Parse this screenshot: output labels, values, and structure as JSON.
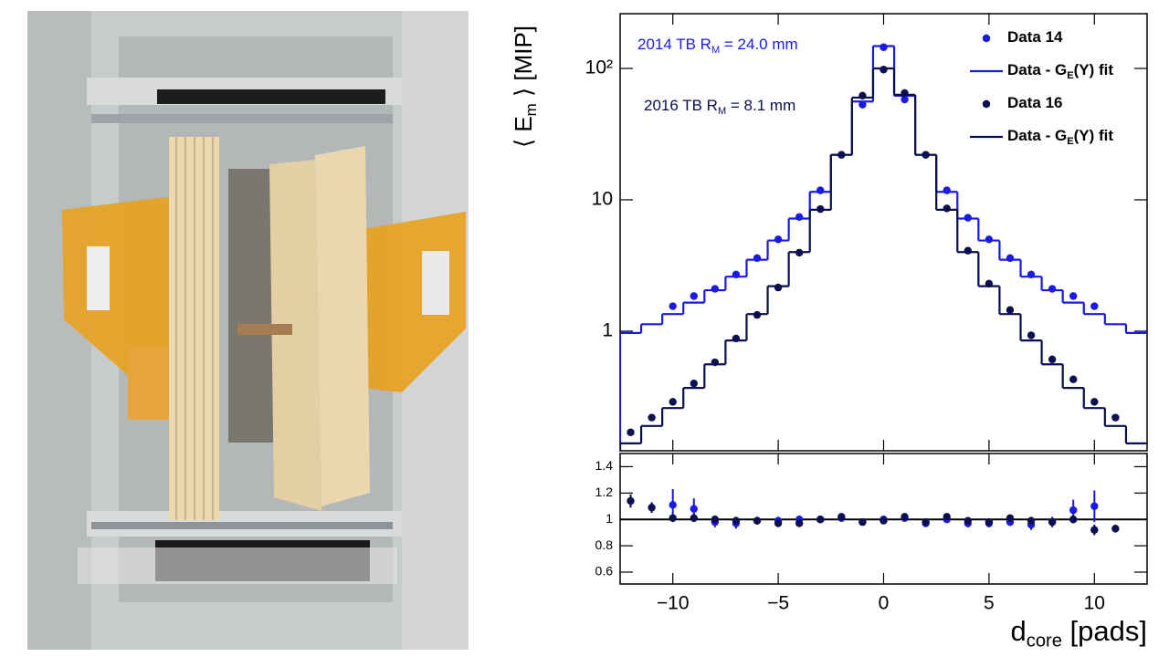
{
  "chart_data": [
    {
      "type": "scatter",
      "yscale": "log",
      "ylabel": [
        "⟨ E",
        "m",
        " ⟩ [MIP]"
      ],
      "annotations": [
        {
          "text": [
            "2014 TB R",
            "M",
            " = 24.0 mm"
          ],
          "color": "#1a1ae6"
        },
        {
          "text": [
            "2016 TB R",
            "M",
            " = 8.1 mm"
          ],
          "color": "#0b0f4f"
        }
      ],
      "legend": "upper right",
      "xlim": [
        -12.5,
        12.5
      ],
      "ylim": [
        0.123,
        261
      ],
      "yticks": [
        1,
        10,
        {
          "value": 100,
          "label": "10²"
        }
      ],
      "series": [
        {
          "name": [
            "Data 14"
          ],
          "color": "#1a1ae6",
          "style": "points",
          "x": [
            -10,
            -9,
            -8,
            -7,
            -6,
            -5,
            -4,
            -3,
            -2,
            -1,
            0,
            1,
            2,
            3,
            4,
            5,
            6,
            7,
            8,
            9,
            10
          ],
          "values": [
            1.55,
            1.85,
            2.1,
            2.7,
            3.6,
            5.0,
            7.4,
            11.8,
            22,
            53,
            145,
            58,
            22,
            11.8,
            7.3,
            5.0,
            3.6,
            2.7,
            2.1,
            1.85,
            1.55
          ]
        },
        {
          "name": [
            "Data - G",
            "E",
            "(Y) fit"
          ],
          "color": "#1a1ae6",
          "style": "steps",
          "x": [
            -12,
            -11,
            -10,
            -9,
            -8,
            -7,
            -6,
            -5,
            -4,
            -3,
            -2,
            -1,
            0,
            1,
            2,
            3,
            4,
            5,
            6,
            7,
            8,
            9,
            10,
            11,
            12
          ],
          "values": [
            0.97,
            1.13,
            1.35,
            1.65,
            2.05,
            2.6,
            3.5,
            4.9,
            7.2,
            11.5,
            22,
            56,
            148,
            62,
            22,
            11.5,
            7.2,
            4.9,
            3.5,
            2.6,
            2.05,
            1.65,
            1.35,
            1.13,
            0.97
          ]
        },
        {
          "name": [
            "Data 16"
          ],
          "color": "#0b0f4f",
          "style": "points",
          "x": [
            -12,
            -11,
            -10,
            -9,
            -8,
            -7,
            -6,
            -5,
            -4,
            -3,
            -2,
            -1,
            0,
            1,
            2,
            3,
            4,
            5,
            6,
            7,
            8,
            9,
            10,
            11
          ],
          "values": [
            0.17,
            0.22,
            0.29,
            0.4,
            0.58,
            0.88,
            1.33,
            2.15,
            3.96,
            8.5,
            22,
            62,
            98,
            65,
            22,
            8.6,
            4.1,
            2.3,
            1.45,
            0.93,
            0.61,
            0.43,
            0.29,
            0.22
          ]
        },
        {
          "name": [
            "Data - G",
            "E",
            "(Y) fit"
          ],
          "color": "#0b0f4f",
          "style": "steps",
          "x": [
            -12,
            -11,
            -10,
            -9,
            -8,
            -7,
            -6,
            -5,
            -4,
            -3,
            -2,
            -1,
            0,
            1,
            2,
            3,
            4,
            5,
            6,
            7,
            8,
            9,
            10,
            11,
            12
          ],
          "values": [
            0.14,
            0.19,
            0.26,
            0.37,
            0.56,
            0.85,
            1.35,
            2.2,
            4.0,
            8.4,
            22,
            60,
            100,
            63,
            22,
            8.4,
            4.0,
            2.2,
            1.35,
            0.85,
            0.56,
            0.37,
            0.26,
            0.19,
            0.14
          ]
        }
      ]
    },
    {
      "type": "scatter",
      "xlabel": [
        "d",
        "core",
        " [pads]"
      ],
      "xlim": [
        -12.5,
        12.5
      ],
      "ylim": [
        0.51,
        1.5
      ],
      "xticks": [
        {
          "value": -10,
          "label": "−10"
        },
        {
          "value": -5,
          "label": "−5"
        },
        0,
        5,
        10
      ],
      "yticks": [
        0.6,
        0.8,
        1,
        1.2,
        1.4
      ],
      "hline": 1,
      "series": [
        {
          "color": "#1a1ae6",
          "style": "points",
          "x": [
            -10,
            -9,
            -8,
            -7,
            -6,
            -5,
            -4,
            -3,
            -2,
            -1,
            0,
            1,
            2,
            3,
            4,
            5,
            6,
            7,
            8,
            9,
            10
          ],
          "values": [
            1.11,
            1.08,
            0.98,
            0.97,
            0.99,
            0.99,
            1.0,
            1.0,
            1.01,
            0.98,
            1.0,
            1.01,
            0.97,
            1.0,
            0.97,
            0.97,
            0.98,
            0.96,
            0.98,
            1.07,
            1.1
          ],
          "errors": [
            0.12,
            0.08,
            0.04,
            0.04,
            0.03,
            0.03,
            0.03,
            0.02,
            0.02,
            0.02,
            0.01,
            0.02,
            0.02,
            0.02,
            0.03,
            0.03,
            0.03,
            0.04,
            0.04,
            0.08,
            0.12
          ]
        },
        {
          "color": "#0b0f4f",
          "style": "points",
          "x": [
            -12,
            -11,
            -10,
            -9,
            -8,
            -7,
            -6,
            -5,
            -4,
            -3,
            -2,
            -1,
            0,
            1,
            2,
            3,
            4,
            5,
            6,
            7,
            8,
            9,
            10,
            11
          ],
          "values": [
            1.14,
            1.09,
            1.01,
            1.01,
            1.0,
            0.99,
            0.99,
            0.97,
            0.97,
            1.0,
            1.02,
            0.98,
            0.99,
            1.02,
            0.98,
            1.02,
            0.99,
            0.98,
            1.01,
            0.99,
            0.98,
            1.0,
            0.92,
            0.93
          ],
          "errors": [
            0.05,
            0.04,
            0.03,
            0.03,
            0.03,
            0.03,
            0.02,
            0.02,
            0.02,
            0.02,
            0.02,
            0.02,
            0.01,
            0.02,
            0.02,
            0.02,
            0.02,
            0.02,
            0.02,
            0.03,
            0.03,
            0.03,
            0.04,
            0.03
          ]
        }
      ]
    }
  ]
}
